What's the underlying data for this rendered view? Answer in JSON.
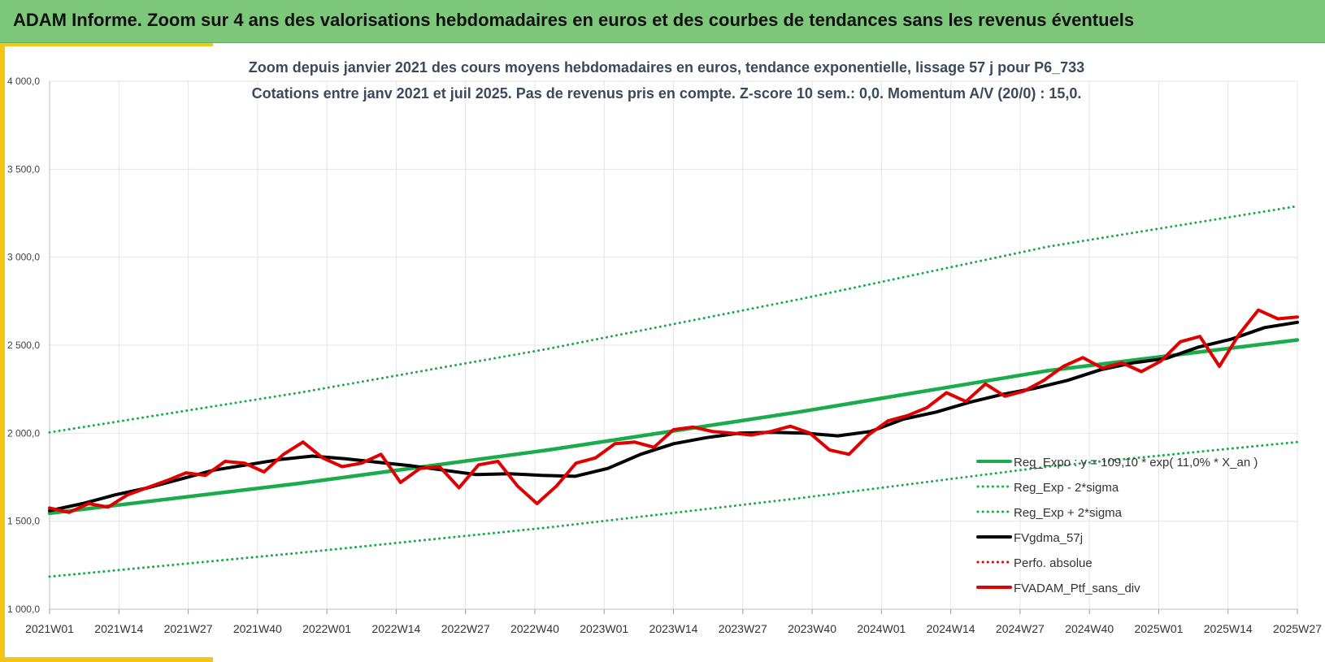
{
  "banner": {
    "title": "ADAM Informe. Zoom sur 4 ans des valorisations hebdomadaires en euros et des courbes de tendances sans les revenus éventuels"
  },
  "chart_data": {
    "type": "line",
    "title": "Zoom depuis janvier 2021 des cours moyens hebdomadaires  en euros, tendance exponentielle, lissage 57 j pour  P6_733",
    "subtitle": "Cotations  entre janv 2021 et juil 2025. Pas de revenus pris en compte. Z-score 10 sem.: 0,0. Momentum  A/V (20/0) : 15,0.",
    "xlabel": "",
    "ylabel": "",
    "ylim": [
      1000,
      4000
    ],
    "yticks": [
      "1 000,0",
      "1 500,0",
      "2 000,0",
      "2 500,0",
      "3 000,0",
      "3 500,0",
      "4 000,0"
    ],
    "x_ticks": [
      "2021W01",
      "2021W14",
      "2021W27",
      "2021W40",
      "2022W01",
      "2022W14",
      "2022W27",
      "2022W40",
      "2023W01",
      "2023W14",
      "2023W27",
      "2023W40",
      "2024W01",
      "2024W14",
      "2024W27",
      "2024W40",
      "2025W01",
      "2025W14",
      "2025W27"
    ],
    "grid": true,
    "legend_position": "bottom-right",
    "series": [
      {
        "name": "Reg_Expo : y = 109,10 * exp( 11,0% *  X_an )",
        "color": "#1aab4b",
        "style": "solid",
        "values": [
          1545,
          1715,
          1905,
          2120,
          2355,
          2530
        ]
      },
      {
        "name": "Reg_Exp - 2*sigma",
        "color": "#1aab4b",
        "style": "dotted",
        "values": [
          1185,
          1320,
          1465,
          1630,
          1810,
          1950
        ]
      },
      {
        "name": "Reg_Exp + 2*sigma",
        "color": "#1aab4b",
        "style": "dotted",
        "values": [
          2005,
          2230,
          2480,
          2760,
          3060,
          3290
        ]
      },
      {
        "name": "FVgdma_57j",
        "color": "#000000",
        "style": "solid",
        "values": [
          1560,
          1600,
          1650,
          1690,
          1740,
          1790,
          1820,
          1850,
          1870,
          1855,
          1835,
          1815,
          1790,
          1765,
          1770,
          1760,
          1755,
          1800,
          1880,
          1940,
          1975,
          2000,
          2005,
          2000,
          1985,
          2010,
          2080,
          2120,
          2175,
          2220,
          2255,
          2300,
          2360,
          2400,
          2425,
          2490,
          2535,
          2600,
          2630
        ]
      },
      {
        "name": "Perfo. absolue",
        "color": "#e00000",
        "style": "dotted",
        "values": []
      },
      {
        "name": "FVADAM_Ptf_sans_div",
        "color": "#e00000",
        "style": "solid",
        "values": [
          1575,
          1550,
          1600,
          1580,
          1650,
          1690,
          1730,
          1775,
          1760,
          1840,
          1830,
          1780,
          1880,
          1950,
          1860,
          1810,
          1830,
          1880,
          1720,
          1800,
          1810,
          1690,
          1820,
          1840,
          1700,
          1600,
          1700,
          1830,
          1860,
          1940,
          1950,
          1920,
          2020,
          2035,
          2010,
          2000,
          1990,
          2010,
          2040,
          2000,
          1905,
          1880,
          1990,
          2070,
          2100,
          2145,
          2230,
          2180,
          2280,
          2210,
          2240,
          2300,
          2380,
          2430,
          2370,
          2400,
          2350,
          2410,
          2520,
          2550,
          2380,
          2560,
          2700,
          2650,
          2660
        ]
      }
    ]
  }
}
